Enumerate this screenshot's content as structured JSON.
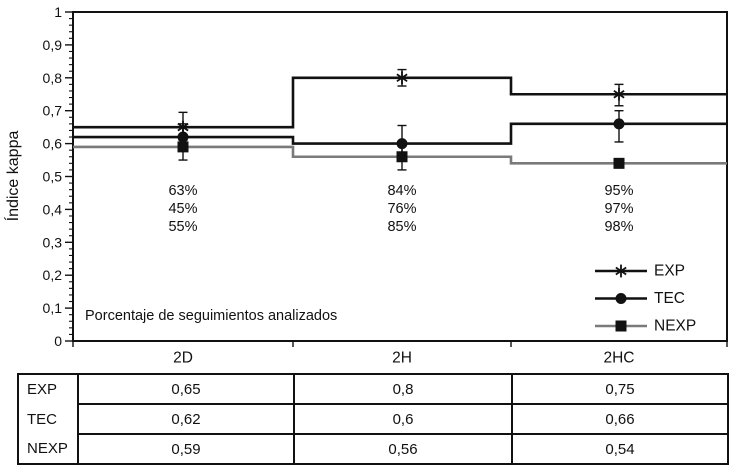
{
  "colors": {
    "axis": "#111111",
    "nexp_line": "#7a7a7a",
    "background": "#ffffff"
  },
  "chart_data": {
    "type": "line",
    "subtype": "step-with-error-bars",
    "title": "",
    "xlabel": "",
    "ylabel": "Índice kappa",
    "note": "Porcentaje de seguimientos analizados",
    "decimal_separator": ",",
    "grid": false,
    "categories": [
      "2D",
      "2H",
      "2HC"
    ],
    "y_axis": {
      "min": 0,
      "max": 1,
      "major_step": 0.1,
      "minor_step": 0.02,
      "tick_labels": [
        "0",
        "0,1",
        "0,2",
        "0,3",
        "0,4",
        "0,5",
        "0,6",
        "0,7",
        "0,8",
        "0,9",
        "1"
      ]
    },
    "series": [
      {
        "name": "EXP",
        "color": "#111111",
        "marker": "star",
        "values": [
          0.65,
          0.8,
          0.75
        ],
        "err_lo": [
          0.61,
          0.775,
          0.715
        ],
        "err_hi": [
          0.695,
          0.825,
          0.78
        ]
      },
      {
        "name": "TEC",
        "color": "#111111",
        "marker": "circle",
        "values": [
          0.62,
          0.6,
          0.66
        ],
        "err_lo": [
          0.58,
          0.56,
          0.605
        ],
        "err_hi": [
          0.66,
          0.655,
          0.7
        ]
      },
      {
        "name": "NEXP",
        "color": "#7a7a7a",
        "marker": "square",
        "marker_color": "#111111",
        "values": [
          0.59,
          0.56,
          0.54
        ],
        "err_lo": [
          0.55,
          0.52,
          null
        ],
        "err_hi": [
          0.625,
          0.595,
          null
        ]
      }
    ],
    "annotations": {
      "percent_labels": [
        [
          "63%",
          "45%",
          "55%"
        ],
        [
          "84%",
          "76%",
          "85%"
        ],
        [
          "95%",
          "97%",
          "98%"
        ]
      ]
    },
    "legend": {
      "position": "bottom-right",
      "entries": [
        "EXP",
        "TEC",
        "NEXP"
      ]
    },
    "table": {
      "row_labels": [
        "EXP",
        "TEC",
        "NEXP"
      ],
      "columns": [
        "2D",
        "2H",
        "2HC"
      ],
      "values": [
        [
          "0,65",
          "0,8",
          "0,75"
        ],
        [
          "0,62",
          "0,6",
          "0,66"
        ],
        [
          "0,59",
          "0,56",
          "0,54"
        ]
      ]
    }
  }
}
